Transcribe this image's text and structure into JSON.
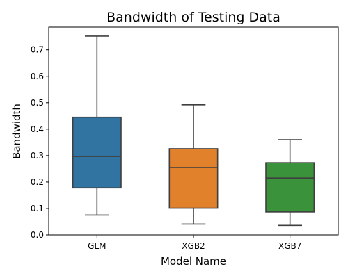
{
  "chart_data": {
    "type": "box",
    "title": "Bandwidth of Testing Data",
    "xlabel": "Model Name",
    "ylabel": "Bandwidth",
    "ylim": [
      0.0,
      0.786
    ],
    "yticks": [
      0.0,
      0.1,
      0.2,
      0.3,
      0.4,
      0.5,
      0.6,
      0.7
    ],
    "ytick_labels": [
      "0.0",
      "0.1",
      "0.2",
      "0.3",
      "0.4",
      "0.5",
      "0.6",
      "0.7"
    ],
    "categories": [
      "GLM",
      "XGB2",
      "XGB7"
    ],
    "boxes": [
      {
        "name": "GLM",
        "whisker_low": 0.075,
        "q1": 0.178,
        "median": 0.297,
        "q3": 0.445,
        "whisker_high": 0.752,
        "color": "#3274a1"
      },
      {
        "name": "XGB2",
        "whisker_low": 0.041,
        "q1": 0.101,
        "median": 0.255,
        "q3": 0.326,
        "whisker_high": 0.492,
        "color": "#e1812c"
      },
      {
        "name": "XGB7",
        "whisker_low": 0.036,
        "q1": 0.087,
        "median": 0.215,
        "q3": 0.273,
        "whisker_high": 0.36,
        "color": "#3a923a"
      }
    ],
    "grid": false,
    "legend": "none"
  }
}
